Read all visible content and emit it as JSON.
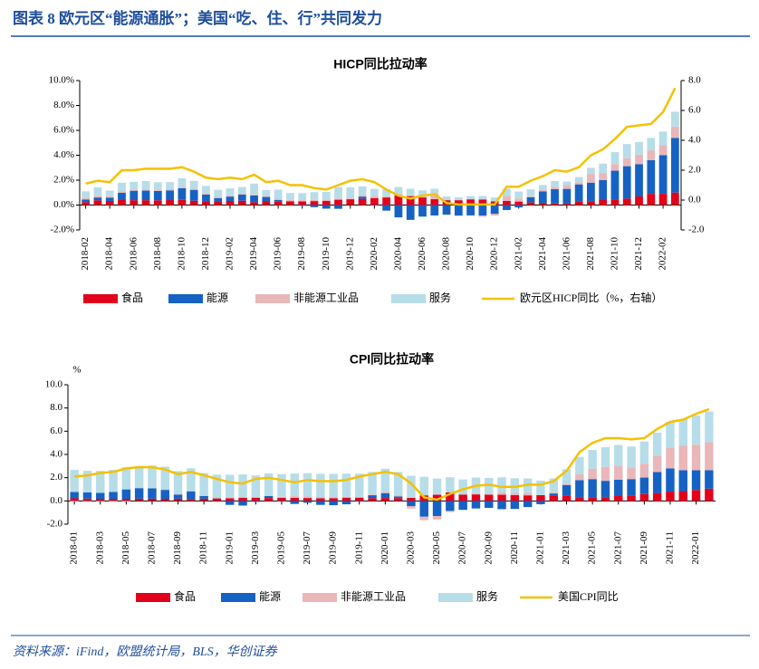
{
  "header": {
    "title": "图表 8   欧元区“能源通胀”；美国“吃、住、行”共同发力"
  },
  "source": "资料来源：iFind，欧盟统计局，BLS，华创证券",
  "chart_data": [
    {
      "type": "bar",
      "stacked": true,
      "title": "HICP同比拉动率",
      "categories": [
        "2018-02",
        null,
        "2018-04",
        null,
        "2018-06",
        null,
        "2018-08",
        null,
        "2018-10",
        null,
        "2018-12",
        null,
        "2019-02",
        null,
        "2019-04",
        null,
        "2019-06",
        null,
        "2019-08",
        null,
        "2019-10",
        null,
        "2019-12",
        null,
        "2020-02",
        null,
        "2020-04",
        null,
        "2020-06",
        null,
        "2020-08",
        null,
        "2020-10",
        null,
        "2020-12",
        null,
        "2021-02",
        null,
        "2021-04",
        null,
        "2021-06",
        null,
        "2021-08",
        null,
        "2021-10",
        null,
        "2021-12",
        null,
        "2022-02",
        null
      ],
      "ylim": [
        -2,
        10
      ],
      "yticks": [
        {
          "value": -2,
          "label": "-2.0%"
        },
        {
          "value": 0,
          "label": "0.0%"
        },
        {
          "value": 2,
          "label": "2.0%"
        },
        {
          "value": 4,
          "label": "4.0%"
        },
        {
          "value": 6,
          "label": "6.0%"
        },
        {
          "value": 8,
          "label": "8.0%"
        },
        {
          "value": 10,
          "label": "10.0%"
        }
      ],
      "y2lim": [
        -2,
        8
      ],
      "y2ticks": [
        {
          "value": -2,
          "label": "-2.0"
        },
        {
          "value": 0,
          "label": "0.0"
        },
        {
          "value": 2,
          "label": "2.0"
        },
        {
          "value": 4,
          "label": "4.0"
        },
        {
          "value": 6,
          "label": "6.0"
        },
        {
          "value": 8,
          "label": "8.0"
        }
      ],
      "series": [
        {
          "name": "食品",
          "color": "#e3001b",
          "values": [
            0.23,
            0.38,
            0.33,
            0.4,
            0.39,
            0.39,
            0.38,
            0.4,
            0.42,
            0.35,
            0.32,
            0.3,
            0.33,
            0.35,
            0.23,
            0.29,
            0.28,
            0.27,
            0.29,
            0.32,
            0.34,
            0.43,
            0.46,
            0.5,
            0.56,
            0.61,
            0.79,
            0.72,
            0.61,
            0.47,
            0.39,
            0.39,
            0.46,
            0.45,
            0.3,
            0.33,
            0.28,
            0.21,
            0.15,
            0.13,
            0.1,
            0.26,
            0.3,
            0.4,
            0.46,
            0.52,
            0.69,
            0.9,
            0.9,
            1.0
          ]
        },
        {
          "name": "能源",
          "color": "#1662c4",
          "values": [
            0.22,
            0.23,
            0.27,
            0.58,
            0.76,
            0.77,
            0.75,
            0.78,
            0.93,
            0.87,
            0.52,
            0.26,
            0.35,
            0.49,
            0.54,
            0.36,
            0.13,
            0.05,
            -0.06,
            -0.17,
            -0.29,
            -0.3,
            0.02,
            0.18,
            -0.03,
            -0.45,
            -0.99,
            -1.19,
            -0.93,
            -0.84,
            -0.77,
            -0.85,
            -0.83,
            -0.85,
            -0.71,
            -0.4,
            -0.19,
            0.41,
            0.95,
            1.15,
            1.2,
            1.4,
            1.5,
            1.6,
            2.3,
            2.6,
            2.6,
            2.7,
            3.1,
            4.4
          ]
        },
        {
          "name": "非能源工业品",
          "color": "#e9b7b9",
          "values": [
            0.1,
            0.12,
            0.11,
            0.11,
            0.1,
            0.1,
            0.09,
            0.11,
            0.12,
            0.11,
            0.1,
            0.1,
            0.1,
            0.1,
            0.09,
            0.09,
            0.1,
            0.1,
            0.1,
            0.09,
            0.09,
            0.1,
            0.11,
            0.13,
            0.13,
            0.1,
            0.1,
            0.06,
            0.07,
            0.44,
            -0.03,
            -0.03,
            -0.04,
            -0.09,
            -0.14,
            0.4,
            0.25,
            0.07,
            0.1,
            0.18,
            0.3,
            0.18,
            0.7,
            0.57,
            0.53,
            0.64,
            0.76,
            0.79,
            0.8,
            0.9
          ]
        },
        {
          "name": "服务",
          "color": "#b7dde9",
          "values": [
            0.55,
            0.7,
            0.45,
            0.7,
            0.61,
            0.67,
            0.61,
            0.56,
            0.68,
            0.61,
            0.6,
            0.57,
            0.56,
            0.51,
            0.86,
            0.46,
            0.73,
            0.55,
            0.57,
            0.63,
            0.62,
            0.91,
            0.83,
            0.69,
            0.61,
            0.56,
            0.56,
            0.53,
            0.5,
            0.4,
            0.3,
            0.23,
            0.26,
            0.27,
            0.31,
            0.58,
            0.55,
            0.57,
            0.41,
            0.47,
            0.29,
            0.41,
            0.49,
            0.76,
            0.96,
            1.14,
            1.02,
            1.0,
            1.1,
            1.2
          ]
        },
        {
          "name": "欧元区HICP同比（%，右轴）",
          "type": "line",
          "axis": "y2",
          "color": "#f5c100",
          "values": [
            1.1,
            1.3,
            1.2,
            2.0,
            2.0,
            2.1,
            2.1,
            2.1,
            2.2,
            1.9,
            1.5,
            1.4,
            1.5,
            1.4,
            1.7,
            1.2,
            1.3,
            1.0,
            1.0,
            0.8,
            0.7,
            1.0,
            1.3,
            1.4,
            1.2,
            0.7,
            0.3,
            0.1,
            0.3,
            0.4,
            -0.2,
            -0.3,
            -0.3,
            -0.3,
            -0.3,
            0.9,
            0.9,
            1.3,
            1.6,
            2.0,
            1.9,
            2.2,
            3.0,
            3.4,
            4.1,
            4.9,
            5.0,
            5.1,
            5.9,
            7.5
          ]
        }
      ]
    },
    {
      "type": "bar",
      "stacked": true,
      "title": "CPI同比拉动率",
      "y_unit": "%",
      "categories": [
        "2018-01",
        null,
        "2018-03",
        null,
        "2018-05",
        null,
        "2018-07",
        null,
        "2018-09",
        null,
        "2018-11",
        null,
        "2019-01",
        null,
        "2019-03",
        null,
        "2019-05",
        null,
        "2019-07",
        null,
        "2019-09",
        null,
        "2019-11",
        null,
        "2020-01",
        null,
        "2020-03",
        null,
        "2020-05",
        null,
        "2020-07",
        null,
        "2020-09",
        null,
        "2020-11",
        null,
        "2021-01",
        null,
        "2021-03",
        null,
        "2021-05",
        null,
        "2021-07",
        null,
        "2021-09",
        null,
        "2021-11",
        null,
        "2022-01",
        null
      ],
      "ylim": [
        -2,
        10
      ],
      "yticks": [
        {
          "value": -2,
          "label": "-2.0"
        },
        {
          "value": 0,
          "label": "0.0"
        },
        {
          "value": 2,
          "label": "2.0"
        },
        {
          "value": 4,
          "label": "4.0"
        },
        {
          "value": 6,
          "label": "6.0"
        },
        {
          "value": 8,
          "label": "8.0"
        },
        {
          "value": 10,
          "label": "10.0"
        }
      ],
      "series": [
        {
          "name": "食品",
          "color": "#e3001b",
          "values": [
            0.22,
            0.2,
            0.18,
            0.18,
            0.18,
            0.19,
            0.19,
            0.18,
            0.19,
            0.16,
            0.19,
            0.21,
            0.22,
            0.26,
            0.28,
            0.25,
            0.26,
            0.26,
            0.25,
            0.23,
            0.24,
            0.28,
            0.28,
            0.24,
            0.25,
            0.24,
            0.26,
            0.48,
            0.53,
            0.74,
            0.55,
            0.56,
            0.53,
            0.53,
            0.5,
            0.48,
            0.5,
            0.48,
            0.47,
            0.31,
            0.29,
            0.31,
            0.46,
            0.47,
            0.59,
            0.68,
            0.8,
            0.84,
            0.94,
            1.05
          ]
        },
        {
          "name": "能源",
          "color": "#1662c4",
          "values": [
            0.55,
            0.54,
            0.51,
            0.6,
            0.81,
            0.91,
            0.89,
            0.77,
            0.36,
            0.67,
            0.24,
            0.02,
            -0.34,
            -0.4,
            -0.08,
            0.17,
            -0.04,
            -0.26,
            -0.16,
            -0.34,
            -0.37,
            -0.29,
            -0.04,
            0.25,
            0.42,
            0.15,
            -0.46,
            -1.36,
            -1.3,
            -0.86,
            -0.77,
            -0.65,
            -0.6,
            -0.71,
            -0.69,
            -0.53,
            -0.28,
            0.16,
            0.9,
            1.48,
            1.59,
            1.42,
            1.36,
            1.41,
            1.42,
            1.8,
            2.0,
            1.8,
            1.7,
            1.6
          ]
        },
        {
          "name": "非能源工业品",
          "color": "#e9b7b9",
          "values": [
            -0.05,
            -0.03,
            -0.04,
            -0.06,
            -0.05,
            0.01,
            0.02,
            0.05,
            0.07,
            0.03,
            0.03,
            0.08,
            0.08,
            0.07,
            0.02,
            0.05,
            0.1,
            0.15,
            0.13,
            0.11,
            0.09,
            0.07,
            0.06,
            0.06,
            0.1,
            0.1,
            -0.2,
            -0.3,
            -0.3,
            -0.1,
            0.0,
            0.1,
            0.1,
            0.2,
            0.2,
            0.2,
            0.0,
            0.1,
            0.1,
            0.5,
            0.9,
            1.2,
            1.2,
            1.0,
            1.2,
            1.4,
            1.8,
            2.1,
            2.2,
            2.4
          ]
        },
        {
          "name": "服务",
          "color": "#b7dde9",
          "values": [
            1.9,
            1.85,
            1.9,
            1.9,
            1.9,
            1.9,
            1.95,
            1.95,
            1.95,
            1.95,
            1.95,
            1.95,
            1.95,
            1.95,
            1.9,
            1.9,
            1.95,
            1.95,
            2.0,
            2.0,
            2.0,
            2.0,
            2.0,
            1.95,
            2.0,
            2.0,
            1.9,
            1.6,
            1.4,
            1.3,
            1.3,
            1.35,
            1.35,
            1.3,
            1.25,
            1.25,
            1.25,
            1.2,
            1.25,
            1.5,
            1.6,
            1.7,
            1.8,
            1.8,
            1.9,
            2.0,
            2.2,
            2.3,
            2.5,
            2.65
          ]
        },
        {
          "name": "美国CPI同比",
          "type": "line",
          "color": "#f5c100",
          "values": [
            2.1,
            2.2,
            2.4,
            2.5,
            2.8,
            2.9,
            2.9,
            2.7,
            2.3,
            2.5,
            2.2,
            1.9,
            1.6,
            1.5,
            1.9,
            2.0,
            1.8,
            1.6,
            1.8,
            1.7,
            1.7,
            1.8,
            2.1,
            2.3,
            2.5,
            2.3,
            1.5,
            0.3,
            0.1,
            0.6,
            1.0,
            1.3,
            1.4,
            1.2,
            1.2,
            1.4,
            1.4,
            1.7,
            2.6,
            4.2,
            5.0,
            5.4,
            5.4,
            5.3,
            5.4,
            6.2,
            6.8,
            7.0,
            7.5,
            7.9
          ]
        }
      ]
    }
  ]
}
